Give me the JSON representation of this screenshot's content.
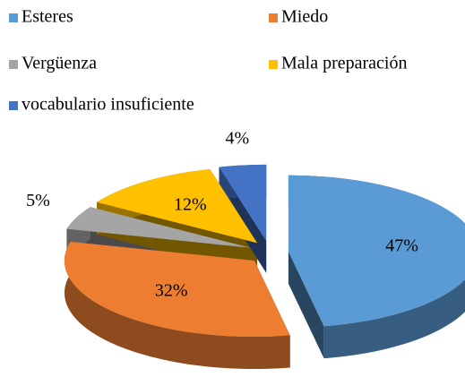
{
  "chart_data": {
    "type": "pie3d",
    "categories": [
      "Esteres",
      "Miedo",
      "Vergüenza",
      "Mala preparación",
      "vocabulario  insuficiente"
    ],
    "values": [
      47,
      32,
      5,
      12,
      4
    ],
    "value_labels": [
      "47%",
      "32%",
      "5%",
      "12%",
      "4%"
    ],
    "colors": [
      "#5b9bd5",
      "#ed7d31",
      "#a5a5a5",
      "#ffc000",
      "#4472c4"
    ],
    "legend": "top"
  }
}
